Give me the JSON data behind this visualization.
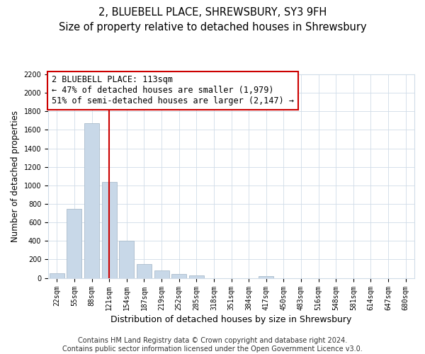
{
  "title": "2, BLUEBELL PLACE, SHREWSBURY, SY3 9FH",
  "subtitle": "Size of property relative to detached houses in Shrewsbury",
  "xlabel": "Distribution of detached houses by size in Shrewsbury",
  "ylabel": "Number of detached properties",
  "bar_labels": [
    "22sqm",
    "55sqm",
    "88sqm",
    "121sqm",
    "154sqm",
    "187sqm",
    "219sqm",
    "252sqm",
    "285sqm",
    "318sqm",
    "351sqm",
    "384sqm",
    "417sqm",
    "450sqm",
    "483sqm",
    "516sqm",
    "548sqm",
    "581sqm",
    "614sqm",
    "647sqm",
    "680sqm"
  ],
  "bar_values": [
    50,
    745,
    1670,
    1040,
    400,
    148,
    80,
    40,
    28,
    0,
    0,
    0,
    20,
    0,
    0,
    0,
    0,
    0,
    0,
    0,
    0
  ],
  "bar_color": "#c8d8e8",
  "bar_edge_color": "#aabccc",
  "vline_x_idx": 3,
  "vline_color": "#cc0000",
  "ylim": [
    0,
    2200
  ],
  "yticks": [
    0,
    200,
    400,
    600,
    800,
    1000,
    1200,
    1400,
    1600,
    1800,
    2000,
    2200
  ],
  "annotation_title": "2 BLUEBELL PLACE: 113sqm",
  "annotation_line1": "← 47% of detached houses are smaller (1,979)",
  "annotation_line2": "51% of semi-detached houses are larger (2,147) →",
  "footer1": "Contains HM Land Registry data © Crown copyright and database right 2024.",
  "footer2": "Contains public sector information licensed under the Open Government Licence v3.0.",
  "title_fontsize": 10.5,
  "subtitle_fontsize": 9.5,
  "xlabel_fontsize": 9,
  "ylabel_fontsize": 8.5,
  "tick_fontsize": 7,
  "annotation_fontsize": 8.5,
  "footer_fontsize": 7
}
